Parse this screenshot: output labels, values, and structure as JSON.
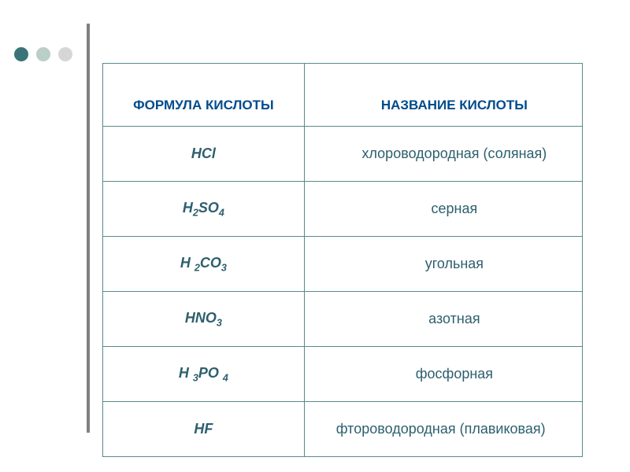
{
  "decor": {
    "dot_colors": [
      "#3b7478",
      "#b9cfc8",
      "#d6d6d6"
    ],
    "vline_color": "#808080"
  },
  "table": {
    "border_color": "#5a8a8a",
    "header_text_color": "#004b8d",
    "body_text_color": "#2d5f6e",
    "header_fontsize": 17,
    "body_fontsize": 18,
    "columns": [
      {
        "label": "ФОРМУЛА КИСЛОТЫ"
      },
      {
        "label": "НАЗВАНИЕ КИСЛОТЫ"
      }
    ],
    "rows": [
      {
        "formula_html": "HCl",
        "name": "хлороводородная (соляная)",
        "name_centered": true
      },
      {
        "formula_html": "H<sub>2</sub>SO<sub>4</sub>",
        "name": "серная",
        "name_centered": true
      },
      {
        "formula_html": "H <sub>2</sub>CO<sub>3</sub>",
        "name": "угольная",
        "name_centered": true
      },
      {
        "formula_html": "HNO<sub>3</sub>",
        "name": "азотная",
        "name_centered": true
      },
      {
        "formula_html": "H <sub>3</sub>PO <sub>4</sub>",
        "name": "фосфорная",
        "name_centered": true
      },
      {
        "formula_html": "HF",
        "name": "фтороводородная (плавиковая)",
        "name_centered": false
      }
    ]
  }
}
